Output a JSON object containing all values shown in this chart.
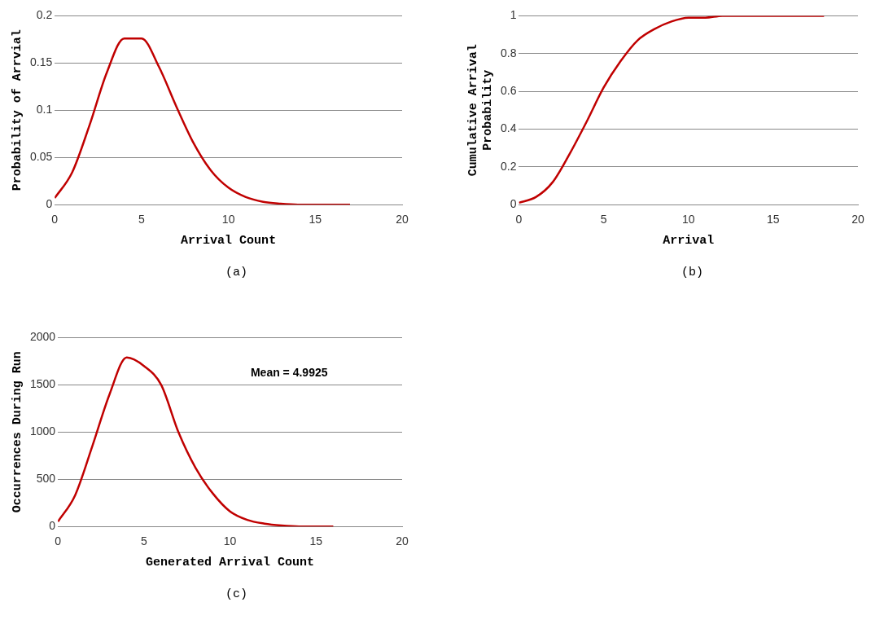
{
  "chart_data": [
    {
      "type": "line",
      "xlabel": "Arrival Count",
      "ylabel": "Probability of Arrvial",
      "annotations": [
        "(a)"
      ],
      "x": [
        0,
        1,
        2,
        3,
        4,
        5,
        6,
        7,
        8,
        9,
        10,
        11,
        12,
        13,
        14,
        15,
        16,
        17
      ],
      "series": [
        {
          "color": "#c00000",
          "values": [
            0.007,
            0.034,
            0.084,
            0.14,
            0.176,
            0.176,
            0.146,
            0.104,
            0.065,
            0.036,
            0.018,
            0.008,
            0.003,
            0.001,
            0,
            0,
            0,
            0
          ]
        }
      ],
      "xlim": [
        0,
        20
      ],
      "xticks": [
        0,
        5,
        10,
        15,
        20
      ],
      "ylim": [
        0,
        0.2
      ],
      "yticks": [
        0,
        0.05,
        0.1,
        0.15,
        0.2
      ],
      "grid": "y",
      "marker": "none",
      "line_style": "solid"
    },
    {
      "type": "line",
      "xlabel": "Arrival",
      "ylabel": "Cumulative Arrival Probability",
      "annotations": [
        "(b)"
      ],
      "x": [
        0,
        1,
        2,
        3,
        4,
        5,
        6,
        7,
        8,
        9,
        10,
        11,
        12,
        13,
        14,
        15,
        16,
        17,
        18
      ],
      "series": [
        {
          "color": "#c00000",
          "values": [
            0.01,
            0.04,
            0.12,
            0.27,
            0.44,
            0.62,
            0.76,
            0.87,
            0.93,
            0.97,
            0.99,
            0.99,
            1,
            1,
            1,
            1,
            1,
            1,
            1
          ]
        }
      ],
      "xlim": [
        0,
        20
      ],
      "xticks": [
        0,
        5,
        10,
        15,
        20
      ],
      "ylim": [
        0,
        1
      ],
      "yticks": [
        0,
        0.2,
        0.4,
        0.6,
        0.8,
        1
      ],
      "grid": "y",
      "marker": "none",
      "line_style": "solid"
    },
    {
      "type": "line",
      "xlabel": "Generated Arrival Count",
      "ylabel": "Occurrences During Run",
      "annotations": [
        "Mean = 4.9925",
        "(c)"
      ],
      "x": [
        0,
        1,
        2,
        3,
        4,
        5,
        6,
        7,
        8,
        9,
        10,
        11,
        12,
        13,
        14,
        15,
        16
      ],
      "series": [
        {
          "color": "#c00000",
          "values": [
            50,
            330,
            850,
            1400,
            1790,
            1700,
            1500,
            1000,
            620,
            350,
            160,
            70,
            30,
            10,
            0,
            0,
            0
          ]
        }
      ],
      "xlim": [
        0,
        20
      ],
      "xticks": [
        0,
        5,
        10,
        15,
        20
      ],
      "ylim": [
        0,
        2000
      ],
      "yticks": [
        0,
        500,
        1000,
        1500,
        2000
      ],
      "grid": "y",
      "marker": "none",
      "line_style": "solid"
    }
  ]
}
